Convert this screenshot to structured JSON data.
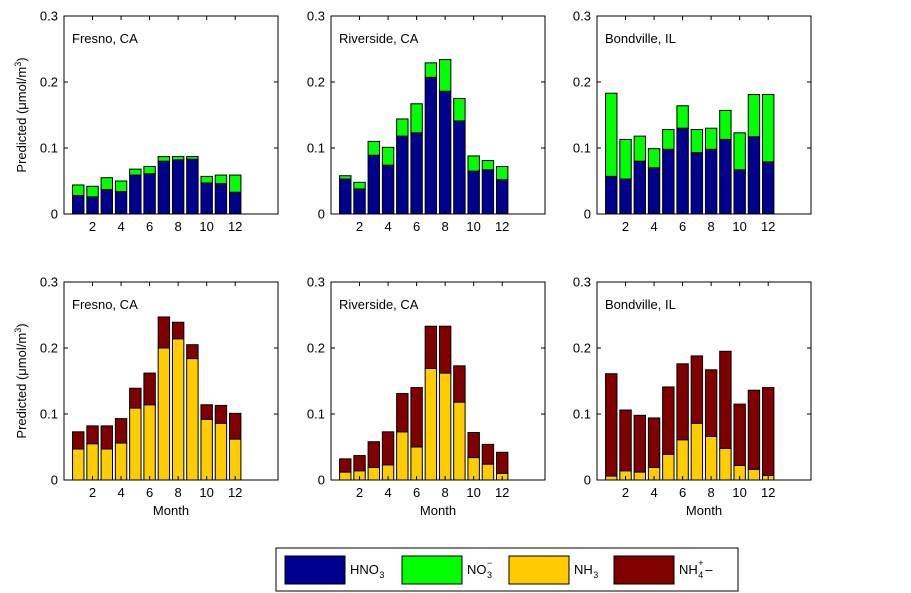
{
  "legend": {
    "items": [
      {
        "base": "HNO",
        "sub": "3",
        "sup": "",
        "tail": "",
        "color": "#00008f"
      },
      {
        "base": "NO",
        "sub": "3",
        "sup": "−",
        "tail": "",
        "color": "#00ff00"
      },
      {
        "base": "NH",
        "sub": "3",
        "sup": "",
        "tail": "",
        "color": "#ffcc00"
      },
      {
        "base": "NH",
        "sub": "4",
        "sup": "+",
        "tail": "–",
        "color": "#800000"
      }
    ]
  },
  "ylabel_prefix": "Predicted (",
  "ylabel_mu": "μ",
  "ylabel_unit": "mol/m",
  "ylabel_exp": "3",
  "ylabel_suffix": ")",
  "xlabel": "Month",
  "chart_data": [
    {
      "type": "bar",
      "stacked": true,
      "panel": "Fresno, CA",
      "ylim": [
        0,
        0.3
      ],
      "yticks": [
        "0",
        "0.1",
        "0.2",
        "0.3"
      ],
      "xlim": [
        0,
        15
      ],
      "xticks": [
        2,
        4,
        6,
        8,
        10,
        12
      ],
      "x": [
        1,
        2,
        3,
        4,
        5,
        6,
        7,
        8,
        9,
        10,
        11,
        12
      ],
      "series": [
        {
          "key": "HNO3",
          "color": "#00008f",
          "values": [
            0.028,
            0.026,
            0.037,
            0.034,
            0.059,
            0.061,
            0.08,
            0.082,
            0.083,
            0.047,
            0.046,
            0.033
          ]
        },
        {
          "key": "NO3",
          "color": "#00ff00",
          "values": [
            0.016,
            0.016,
            0.018,
            0.016,
            0.009,
            0.011,
            0.007,
            0.005,
            0.004,
            0.01,
            0.013,
            0.026
          ]
        }
      ]
    },
    {
      "type": "bar",
      "stacked": true,
      "panel": "Riverside, CA",
      "ylim": [
        0,
        0.3
      ],
      "yticks": [
        "0",
        "0.1",
        "0.2",
        "0.3"
      ],
      "xlim": [
        0,
        15
      ],
      "xticks": [
        2,
        4,
        6,
        8,
        10,
        12
      ],
      "x": [
        1,
        2,
        3,
        4,
        5,
        6,
        7,
        8,
        9,
        10,
        11,
        12
      ],
      "series": [
        {
          "key": "HNO3",
          "color": "#00008f",
          "values": [
            0.053,
            0.038,
            0.089,
            0.074,
            0.118,
            0.123,
            0.207,
            0.186,
            0.141,
            0.065,
            0.067,
            0.052
          ]
        },
        {
          "key": "NO3",
          "color": "#00ff00",
          "values": [
            0.005,
            0.01,
            0.021,
            0.027,
            0.026,
            0.044,
            0.022,
            0.048,
            0.034,
            0.023,
            0.014,
            0.02
          ]
        }
      ]
    },
    {
      "type": "bar",
      "stacked": true,
      "panel": "Bondville, IL",
      "ylim": [
        0,
        0.3
      ],
      "yticks": [
        "0",
        "0.1",
        "0.2",
        "0.3"
      ],
      "xlim": [
        0,
        15
      ],
      "xticks": [
        2,
        4,
        6,
        8,
        10,
        12
      ],
      "x": [
        1,
        2,
        3,
        4,
        5,
        6,
        7,
        8,
        9,
        10,
        11,
        12
      ],
      "series": [
        {
          "key": "HNO3",
          "color": "#00008f",
          "values": [
            0.057,
            0.053,
            0.08,
            0.07,
            0.098,
            0.13,
            0.093,
            0.098,
            0.113,
            0.067,
            0.117,
            0.079
          ]
        },
        {
          "key": "NO3",
          "color": "#00ff00",
          "values": [
            0.126,
            0.06,
            0.038,
            0.029,
            0.03,
            0.034,
            0.035,
            0.032,
            0.044,
            0.056,
            0.064,
            0.102
          ]
        }
      ]
    },
    {
      "type": "bar",
      "stacked": true,
      "panel": "Fresno, CA",
      "ylim": [
        0,
        0.3
      ],
      "yticks": [
        "0",
        "0.1",
        "0.2",
        "0.3"
      ],
      "xlim": [
        0,
        15
      ],
      "xticks": [
        2,
        4,
        6,
        8,
        10,
        12
      ],
      "x": [
        1,
        2,
        3,
        4,
        5,
        6,
        7,
        8,
        9,
        10,
        11,
        12
      ],
      "series": [
        {
          "key": "NH3",
          "color": "#ffcc00",
          "values": [
            0.047,
            0.055,
            0.047,
            0.056,
            0.109,
            0.114,
            0.2,
            0.214,
            0.184,
            0.092,
            0.086,
            0.062
          ]
        },
        {
          "key": "NH4",
          "color": "#800000",
          "values": [
            0.026,
            0.027,
            0.035,
            0.037,
            0.03,
            0.048,
            0.047,
            0.025,
            0.021,
            0.022,
            0.027,
            0.039
          ]
        }
      ]
    },
    {
      "type": "bar",
      "stacked": true,
      "panel": "Riverside, CA",
      "ylim": [
        0,
        0.3
      ],
      "yticks": [
        "0",
        "0.1",
        "0.2",
        "0.3"
      ],
      "xlim": [
        0,
        15
      ],
      "xticks": [
        2,
        4,
        6,
        8,
        10,
        12
      ],
      "x": [
        1,
        2,
        3,
        4,
        5,
        6,
        7,
        8,
        9,
        10,
        11,
        12
      ],
      "series": [
        {
          "key": "NH3",
          "color": "#ffcc00",
          "values": [
            0.012,
            0.014,
            0.019,
            0.023,
            0.073,
            0.05,
            0.169,
            0.162,
            0.118,
            0.034,
            0.024,
            0.01
          ]
        },
        {
          "key": "NH4",
          "color": "#800000",
          "values": [
            0.02,
            0.023,
            0.039,
            0.05,
            0.058,
            0.09,
            0.064,
            0.071,
            0.055,
            0.038,
            0.03,
            0.032
          ]
        }
      ]
    },
    {
      "type": "bar",
      "stacked": true,
      "panel": "Bondville, IL",
      "ylim": [
        0,
        0.3
      ],
      "yticks": [
        "0",
        "0.1",
        "0.2",
        "0.3"
      ],
      "xlim": [
        0,
        15
      ],
      "xticks": [
        2,
        4,
        6,
        8,
        10,
        12
      ],
      "x": [
        1,
        2,
        3,
        4,
        5,
        6,
        7,
        8,
        9,
        10,
        11,
        12
      ],
      "series": [
        {
          "key": "NH3",
          "color": "#ffcc00",
          "values": [
            0.006,
            0.014,
            0.012,
            0.019,
            0.039,
            0.061,
            0.086,
            0.066,
            0.048,
            0.022,
            0.016,
            0.007
          ]
        },
        {
          "key": "NH4",
          "color": "#800000",
          "values": [
            0.155,
            0.092,
            0.086,
            0.075,
            0.102,
            0.115,
            0.102,
            0.101,
            0.147,
            0.093,
            0.12,
            0.133
          ]
        }
      ]
    }
  ]
}
